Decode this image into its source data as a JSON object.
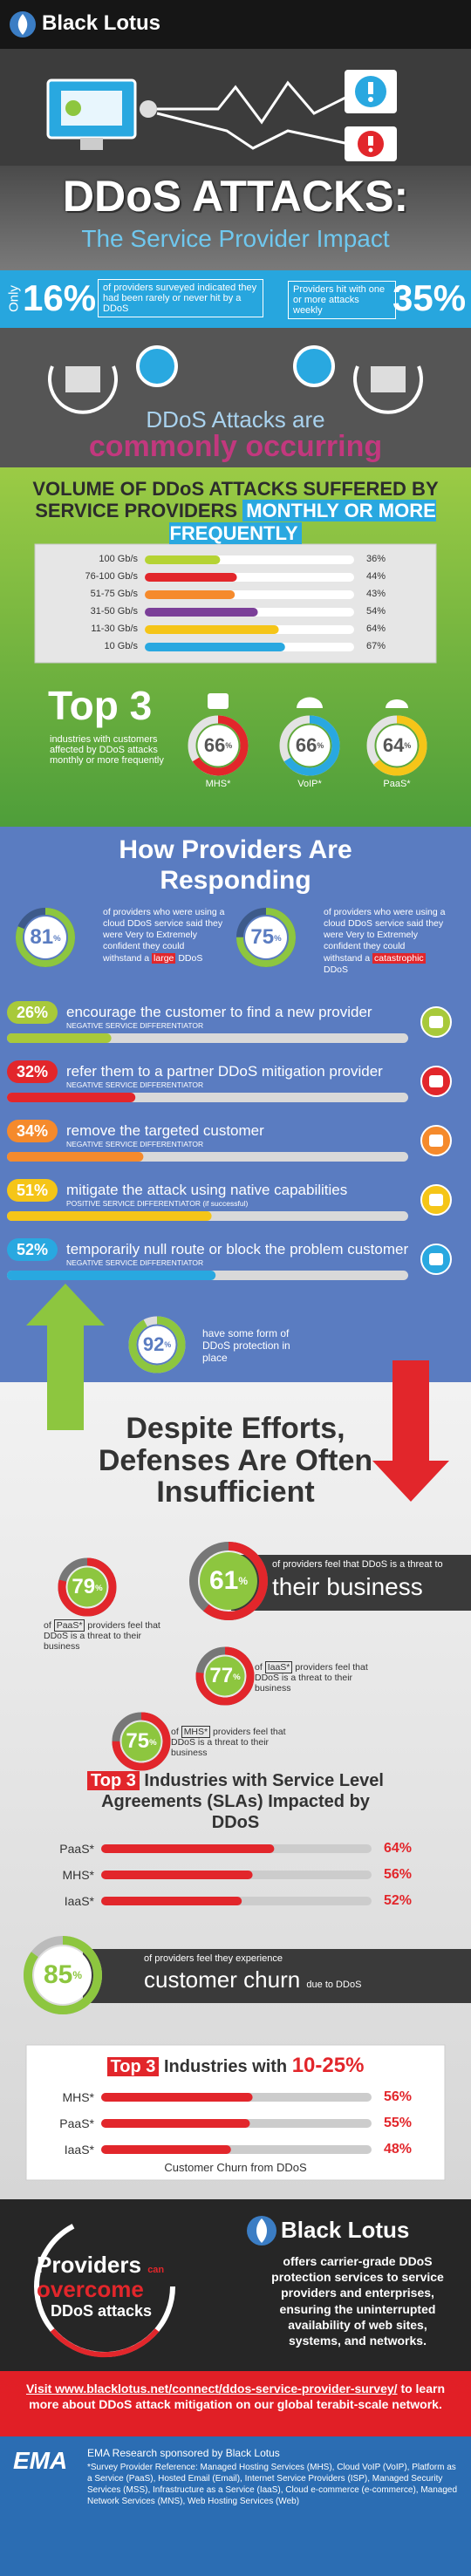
{
  "percent_sign": "%",
  "header": {
    "brand": "Black Lotus"
  },
  "title": {
    "line1": "DDoS ATTACKS:",
    "line2": "The Service Provider Impact"
  },
  "stats": {
    "only": "Only",
    "low_value": 16,
    "low_text": "of providers surveyed indicated they had been rarely or never hit by a DDoS",
    "weekly_text": "Providers hit with one or more attacks weekly",
    "weekly_value": 35
  },
  "common": {
    "line1": "DDoS Attacks are",
    "line2": "commonly occurring"
  },
  "volume": {
    "title": "VOLUME OF DDoS ATTACKS SUFFERED BY SERVICE PROVIDERS",
    "highlight": "MONTHLY OR MORE FREQUENTLY",
    "rows": [
      {
        "label": "100 Gb/s",
        "value": 36,
        "color": "#b5d334"
      },
      {
        "label": "76-100 Gb/s",
        "value": 44,
        "color": "#e2262b"
      },
      {
        "label": "51-75 Gb/s",
        "value": 43,
        "color": "#f58a2c"
      },
      {
        "label": "31-50 Gb/s",
        "value": 54,
        "color": "#7b3f98"
      },
      {
        "label": "11-30 Gb/s",
        "value": 64,
        "color": "#f5c518"
      },
      {
        "label": "10 Gb/s",
        "value": 67,
        "color": "#29a8e0"
      }
    ]
  },
  "top3": {
    "title": "Top 3",
    "text": "industries with customers affected by DDoS attacks monthly or more frequently",
    "items": [
      {
        "name": "MHS*",
        "value": 66,
        "color": "#e2262b"
      },
      {
        "name": "VoIP*",
        "value": 66,
        "color": "#29a8e0"
      },
      {
        "name": "PaaS*",
        "value": 64,
        "color": "#f5c518"
      }
    ]
  },
  "responding": {
    "title": "How Providers Are Responding",
    "confidence": [
      {
        "value": 81,
        "text": "of providers who were using a cloud DDoS service said they were Very to Extremely confident they could withstand a",
        "highlight": "large",
        "tail": "DDoS"
      },
      {
        "value": 75,
        "text": "of providers who were using a cloud DDoS service said they were Very to Extremely confident they could withstand a",
        "highlight": "catastrophic",
        "tail": "DDoS"
      }
    ],
    "actions": [
      {
        "value": 26,
        "text": "encourage the customer to find a new provider",
        "note": "NEGATIVE SERVICE DIFFERENTIATOR",
        "color": "#a8c93a"
      },
      {
        "value": 32,
        "text": "refer them to a partner DDoS mitigation provider",
        "note": "NEGATIVE SERVICE DIFFERENTIATOR",
        "color": "#e2262b"
      },
      {
        "value": 34,
        "text": "remove the targeted customer",
        "note": "NEGATIVE SERVICE DIFFERENTIATOR",
        "color": "#f58a2c"
      },
      {
        "value": 51,
        "text": "mitigate the attack using native capabilities",
        "note": "POSITIVE SERVICE DIFFERENTIATOR (if successful)",
        "color": "#f5c518"
      },
      {
        "value": 52,
        "text": "temporarily null route or block the problem customer",
        "note": "NEGATIVE SERVICE DIFFERENTIATOR",
        "color": "#29a8e0"
      }
    ],
    "protection": {
      "value": 92,
      "text": "have some form of DDoS protection in place"
    }
  },
  "insufficient": {
    "title": "Despite Efforts, Defenses Are Often Insufficient",
    "overall": {
      "value": 61,
      "text": "of providers feel that DDoS is a threat to",
      "emphasis": "their business"
    },
    "segments": [
      {
        "value": 79,
        "prefix": "of",
        "name": "PaaS*",
        "text": "providers feel that DDoS is a threat to their business"
      },
      {
        "value": 77,
        "prefix": "of",
        "name": "IaaS*",
        "text": "providers feel that DDoS is a threat to their business"
      },
      {
        "value": 75,
        "prefix": "of",
        "name": "MHS*",
        "text": "providers feel that DDoS is a threat to their business"
      }
    ]
  },
  "sla": {
    "highlight": "Top 3",
    "title": "Industries with Service Level Agreements (SLAs) Impacted by DDoS",
    "rows": [
      {
        "name": "PaaS*",
        "value": 64
      },
      {
        "name": "MHS*",
        "value": 56
      },
      {
        "name": "IaaS*",
        "value": 52
      }
    ]
  },
  "churn": {
    "value": 85,
    "text": "of providers feel they experience",
    "emphasis": "customer churn",
    "tail": "due to DDoS"
  },
  "churn_industries": {
    "highlight": "Top 3",
    "title": "Industries with",
    "range": "10-25%",
    "rows": [
      {
        "name": "MHS*",
        "value": 56
      },
      {
        "name": "PaaS*",
        "value": 55
      },
      {
        "name": "IaaS*",
        "value": 48
      }
    ],
    "caption": "Customer Churn from DDoS"
  },
  "overcome": {
    "line1": "Providers",
    "can": "can",
    "line2": "overcome",
    "line3": "DDoS attacks",
    "brand": "Black Lotus",
    "text": "offers carrier-grade DDoS protection services to service providers and enterprises, ensuring the uninterrupted availability of web sites, systems, and networks."
  },
  "visit": {
    "link": "Visit www.blacklotus.net/connect/ddos-service-provider-survey/",
    "text": "to learn more about DDoS attack mitigation on our global terabit-scale network."
  },
  "footer": {
    "logo": "EMA",
    "sponsor": "EMA Research sponsored by Black Lotus",
    "note": "*Survey Provider Reference: Managed Hosting Services (MHS), Cloud VoIP (VoIP), Platform as a Service (PaaS), Hosted Email (Email), Internet Service Providers (ISP), Managed Security Services (MSS), Infrastructure as a Service (IaaS), Cloud e-commerce (e-commerce), Managed Network Services (MNS), Web Hosting Services (Web)"
  }
}
